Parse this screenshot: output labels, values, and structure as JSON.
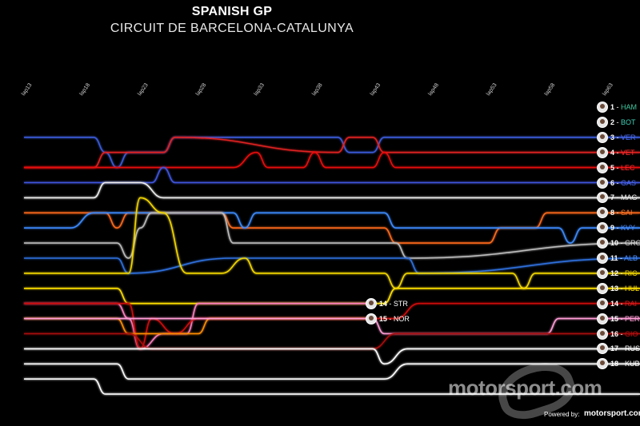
{
  "header": {
    "title": "SPANISH GP",
    "subtitle": "CIRCUIT DE BARCELONA-CATALUNYA"
  },
  "chart_data": {
    "type": "line",
    "title": "SPANISH GP",
    "subtitle": "CIRCUIT DE BARCELONA-CATALUNYA",
    "x_ticks": [
      "lap13",
      "lap18",
      "lap23",
      "lap28",
      "lap33",
      "lap38",
      "lap43",
      "lap48",
      "lap53",
      "lap58",
      "lap63"
    ],
    "xlim": [
      13,
      66
    ],
    "ylim": [
      1,
      20
    ],
    "y_inverted": true,
    "grid": false,
    "legend": "right",
    "series": [
      {
        "name": "HAM",
        "color": "#41c9a0",
        "points": [
          [
            13,
            1
          ],
          [
            66,
            1
          ]
        ]
      },
      {
        "name": "BOT",
        "color": "#3fd1b8",
        "points": [
          [
            13,
            2
          ],
          [
            66,
            2
          ]
        ]
      },
      {
        "name": "VER",
        "color": "#3b5bdb",
        "points": [
          [
            13,
            3
          ],
          [
            19,
            3
          ],
          [
            20,
            4
          ],
          [
            21,
            5
          ],
          [
            22,
            4
          ],
          [
            25,
            4
          ],
          [
            26,
            3
          ],
          [
            40,
            3
          ],
          [
            41,
            4
          ],
          [
            43,
            4
          ],
          [
            44,
            3
          ],
          [
            66,
            3
          ]
        ]
      },
      {
        "name": "VET",
        "color": "#e02020",
        "points": [
          [
            13,
            5
          ],
          [
            19,
            5
          ],
          [
            20,
            4
          ],
          [
            25,
            4
          ],
          [
            26,
            3
          ],
          [
            40,
            4
          ],
          [
            41,
            3
          ],
          [
            43,
            3
          ],
          [
            44,
            4
          ],
          [
            66,
            4
          ]
        ]
      },
      {
        "name": "LEC",
        "color": "#e81010",
        "points": [
          [
            13,
            5
          ],
          [
            30,
            5
          ],
          [
            31,
            5
          ],
          [
            33,
            4
          ],
          [
            34,
            5
          ],
          [
            37,
            5
          ],
          [
            38,
            4
          ],
          [
            39,
            5
          ],
          [
            43,
            5
          ],
          [
            44,
            4
          ],
          [
            45,
            5
          ],
          [
            66,
            5
          ]
        ]
      },
      {
        "name": "GAS",
        "color": "#4056e0",
        "points": [
          [
            13,
            6
          ],
          [
            20,
            6
          ],
          [
            21,
            6
          ],
          [
            24,
            6
          ],
          [
            25,
            5
          ],
          [
            26,
            6
          ],
          [
            66,
            6
          ]
        ]
      },
      {
        "name": "MAG",
        "color": "#eeeeee",
        "points": [
          [
            13,
            7
          ],
          [
            19,
            7
          ],
          [
            20,
            6
          ],
          [
            23,
            6
          ],
          [
            25,
            7
          ],
          [
            66,
            7
          ]
        ]
      },
      {
        "name": "SAI",
        "color": "#ff6a1a",
        "points": [
          [
            13,
            8
          ],
          [
            19,
            8
          ],
          [
            20,
            8
          ],
          [
            21,
            9
          ],
          [
            22,
            8
          ],
          [
            30,
            8
          ],
          [
            31,
            9
          ],
          [
            44,
            9
          ],
          [
            45,
            10
          ],
          [
            53,
            10
          ],
          [
            54,
            9
          ],
          [
            57,
            9
          ],
          [
            58,
            8
          ],
          [
            66,
            8
          ]
        ]
      },
      {
        "name": "KVY",
        "color": "#3c8bff",
        "points": [
          [
            13,
            9
          ],
          [
            17,
            9
          ],
          [
            19,
            8
          ],
          [
            31,
            8
          ],
          [
            32,
            9
          ],
          [
            33,
            8
          ],
          [
            44,
            8
          ],
          [
            45,
            9
          ],
          [
            59,
            9
          ],
          [
            60,
            10
          ],
          [
            61,
            9
          ],
          [
            66,
            9
          ]
        ]
      },
      {
        "name": "GRO",
        "color": "#bbbbbb",
        "points": [
          [
            13,
            10
          ],
          [
            21,
            10
          ],
          [
            22,
            11
          ],
          [
            23,
            9
          ],
          [
            24,
            8
          ],
          [
            30,
            8
          ],
          [
            31,
            10
          ],
          [
            45,
            10
          ],
          [
            46,
            11
          ],
          [
            66,
            10
          ]
        ]
      },
      {
        "name": "ALB",
        "color": "#2f6fdc",
        "points": [
          [
            13,
            11
          ],
          [
            21,
            11
          ],
          [
            22,
            12
          ],
          [
            31,
            11
          ],
          [
            46,
            11
          ],
          [
            47,
            12
          ],
          [
            66,
            11
          ]
        ]
      },
      {
        "name": "RIC",
        "color": "#f2d600",
        "points": [
          [
            13,
            12
          ],
          [
            22,
            12
          ],
          [
            23,
            7
          ],
          [
            25,
            8
          ],
          [
            27,
            12
          ],
          [
            30,
            12
          ],
          [
            32,
            11
          ],
          [
            33,
            12
          ],
          [
            44,
            12
          ],
          [
            45,
            13
          ],
          [
            46,
            12
          ],
          [
            55,
            12
          ],
          [
            56,
            13
          ],
          [
            57,
            12
          ],
          [
            66,
            12
          ]
        ]
      },
      {
        "name": "HUL",
        "color": "#ffe000",
        "points": [
          [
            13,
            13
          ],
          [
            21,
            13
          ],
          [
            22,
            14
          ],
          [
            44,
            14
          ],
          [
            45,
            13
          ],
          [
            66,
            13
          ]
        ]
      },
      {
        "name": "STR",
        "color": "#ff7fbf",
        "points": [
          [
            13,
            14
          ],
          [
            21,
            14
          ],
          [
            22,
            15
          ],
          [
            23,
            17
          ],
          [
            25,
            16
          ],
          [
            27,
            16
          ],
          [
            28,
            14
          ],
          [
            43,
            14
          ]
        ]
      },
      {
        "name": "RAI",
        "color": "#cc1010",
        "points": [
          [
            13,
            14
          ],
          [
            22,
            14
          ],
          [
            23,
            17
          ],
          [
            24,
            15
          ],
          [
            26,
            16
          ],
          [
            28,
            15
          ],
          [
            45,
            15
          ],
          [
            47,
            14
          ],
          [
            66,
            14
          ]
        ]
      },
      {
        "name": "NOR",
        "color": "#ff8c00",
        "points": [
          [
            13,
            15
          ],
          [
            21,
            15
          ],
          [
            22,
            16
          ],
          [
            28,
            16
          ],
          [
            29,
            15
          ],
          [
            43,
            15
          ]
        ]
      },
      {
        "name": "PER",
        "color": "#ff9cd6",
        "points": [
          [
            13,
            15
          ],
          [
            30,
            15
          ],
          [
            43,
            15
          ],
          [
            44,
            16
          ],
          [
            58,
            16
          ],
          [
            59,
            15
          ],
          [
            66,
            15
          ]
        ]
      },
      {
        "name": "GIO",
        "color": "#a81010",
        "points": [
          [
            13,
            16
          ],
          [
            22,
            16
          ],
          [
            24,
            17
          ],
          [
            43,
            17
          ],
          [
            45,
            16
          ],
          [
            66,
            16
          ]
        ]
      },
      {
        "name": "RUS",
        "color": "#ffffff",
        "points": [
          [
            13,
            17
          ],
          [
            43,
            17
          ],
          [
            44,
            18
          ],
          [
            46,
            17
          ],
          [
            66,
            17
          ]
        ]
      },
      {
        "name": "KUB",
        "color": "#ffffff",
        "points": [
          [
            13,
            18
          ],
          [
            21,
            18
          ],
          [
            22,
            19
          ],
          [
            44,
            19
          ],
          [
            46,
            18
          ],
          [
            66,
            18
          ]
        ]
      },
      {
        "name": "",
        "color": "#ffffff",
        "points": [
          [
            13,
            19
          ],
          [
            19,
            19
          ],
          [
            20,
            20
          ],
          [
            66,
            20
          ]
        ]
      }
    ],
    "end_labels": [
      {
        "pos": "1",
        "code": "HAM",
        "color": "#41c9a0"
      },
      {
        "pos": "2",
        "code": "BOT",
        "color": "#3fd1b8"
      },
      {
        "pos": "3",
        "code": "VER",
        "color": "#4a6cf0"
      },
      {
        "pos": "4",
        "code": "VET",
        "color": "#ff2a2a"
      },
      {
        "pos": "5",
        "code": "LEC",
        "color": "#ff2a2a"
      },
      {
        "pos": "6",
        "code": "GAS",
        "color": "#4a6cf0"
      },
      {
        "pos": "7",
        "code": "MAG",
        "color": "#eeeeee"
      },
      {
        "pos": "8",
        "code": "SAI",
        "color": "#ff7a2a"
      },
      {
        "pos": "9",
        "code": "KVY",
        "color": "#4a8cff"
      },
      {
        "pos": "10",
        "code": "GRO",
        "color": "#dddddd"
      },
      {
        "pos": "11",
        "code": "ALB",
        "color": "#4a8cff"
      },
      {
        "pos": "12",
        "code": "RIC",
        "color": "#f2d600"
      },
      {
        "pos": "13",
        "code": "HUL",
        "color": "#ffe000"
      },
      {
        "pos": "14",
        "code": "RAI",
        "color": "#cc2020"
      },
      {
        "pos": "15",
        "code": "PER",
        "color": "#ff9cd6"
      },
      {
        "pos": "16",
        "code": "GIO",
        "color": "#bb1010"
      },
      {
        "pos": "17",
        "code": "RUS",
        "color": "#ffffff"
      },
      {
        "pos": "18",
        "code": "KUB",
        "color": "#ffffff"
      }
    ],
    "mid_labels": [
      {
        "pos": "14",
        "code": "STR",
        "lap": 43,
        "color": "#ff9cd6"
      },
      {
        "pos": "15",
        "code": "NOR",
        "lap": 43,
        "color": "#ff8c00"
      }
    ]
  },
  "branding": {
    "watermark": "motorsport.com",
    "powered_text": "Powered by:",
    "powered_logo": "motorsport.com"
  }
}
